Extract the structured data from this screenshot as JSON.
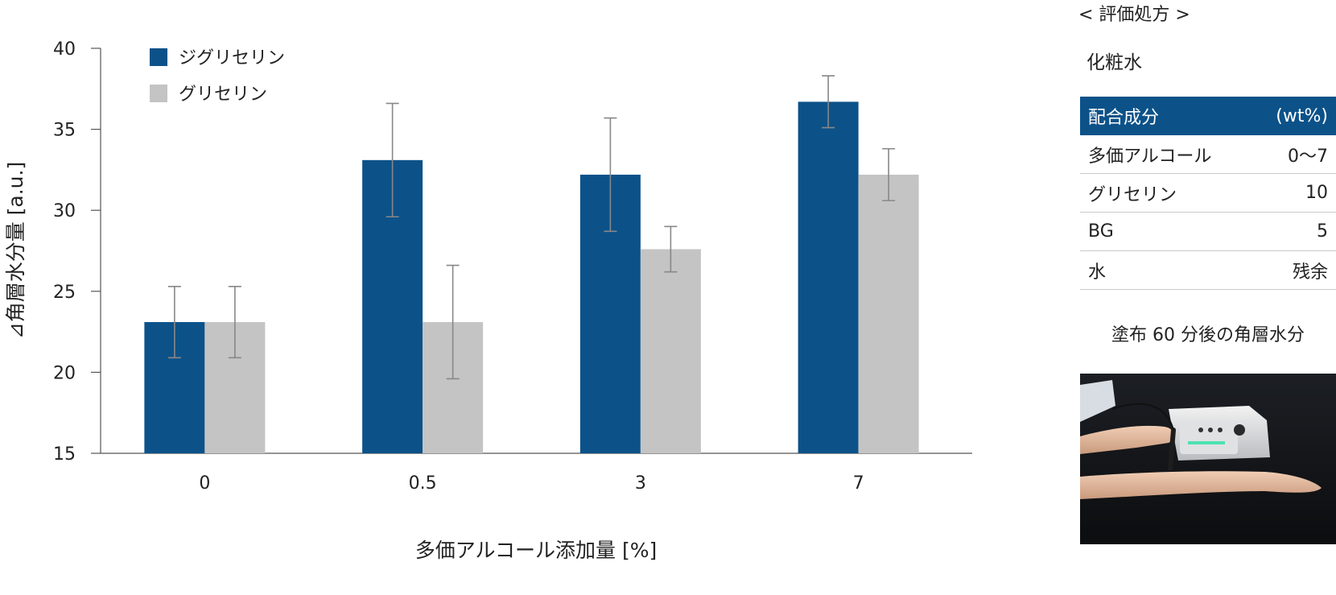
{
  "chart_data": {
    "type": "bar",
    "categories": [
      "0",
      "0.5",
      "3",
      "7"
    ],
    "series": [
      {
        "name": "ジグリセリン",
        "color": "#0c5289",
        "values": [
          23.1,
          33.1,
          32.2,
          36.7
        ],
        "error": [
          2.2,
          3.5,
          3.5,
          1.6
        ]
      },
      {
        "name": "グリセリン",
        "color": "#c4c4c4",
        "values": [
          23.1,
          23.1,
          27.6,
          32.2
        ],
        "error": [
          2.2,
          3.5,
          1.4,
          1.6
        ]
      }
    ],
    "xlabel": "多価アルコール添加量 [%]",
    "ylabel": "⊿角層水分量 [a.u.]",
    "ylim": [
      15,
      40
    ],
    "yticks": [
      15,
      20,
      25,
      30,
      35,
      40
    ],
    "legend_position": "top-left",
    "grid": false
  },
  "side": {
    "title": "< 評価処方 >",
    "product": "化粧水",
    "table_header": {
      "ingredient": "配合成分",
      "unit": "(wt%)"
    },
    "rows": [
      {
        "name": "多価アルコール",
        "value": "0〜7"
      },
      {
        "name": "グリセリン",
        "value": "10"
      },
      {
        "name": "BG",
        "value": "5"
      },
      {
        "name": "水",
        "value": "残余"
      }
    ],
    "caption": "塗布 60 分後の角層水分",
    "header_color": "#0c5289"
  }
}
